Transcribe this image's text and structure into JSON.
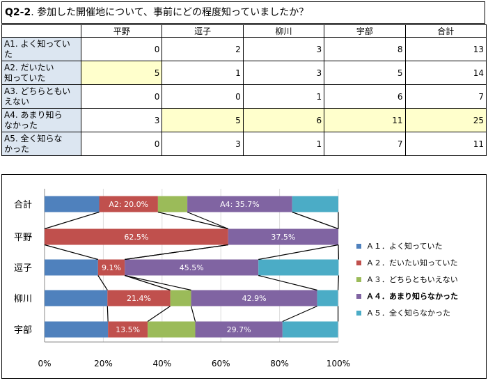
{
  "title": {
    "num": "Q2-2",
    "text": ". 参加した開催地について、事前にどの程度知っていましたか？"
  },
  "table": {
    "headers": [
      "平野",
      "逗子",
      "柳川",
      "宇部",
      "合計"
    ],
    "rows": [
      {
        "label": "A1. よく知ってい\nた",
        "values": [
          "0",
          "2",
          "3",
          "8",
          "13"
        ]
      },
      {
        "label": "A2. だいたい\n知っていた",
        "values": [
          "5",
          "1",
          "3",
          "5",
          "14"
        ]
      },
      {
        "label": "A3. どちらともい\nえない",
        "values": [
          "0",
          "0",
          "1",
          "6",
          "7"
        ]
      },
      {
        "label": "A4. あまり知ら\nなかった",
        "values": [
          "3",
          "5",
          "6",
          "11",
          "25"
        ]
      },
      {
        "label": "A5. 全く知らな\nかった",
        "values": [
          "0",
          "3",
          "1",
          "7",
          "11"
        ]
      }
    ]
  },
  "chart_data": {
    "type": "bar",
    "stacked": "percent",
    "orientation": "horizontal",
    "categories": [
      "合計",
      "平野",
      "逗子",
      "柳川",
      "宇部"
    ],
    "series": [
      {
        "name": "Ａ１．よく知っていた",
        "color": "#4f81bd",
        "values": [
          18.6,
          0,
          18.2,
          21.4,
          21.6
        ]
      },
      {
        "name": "Ａ２．だいたい知っていた",
        "color": "#c0504d",
        "values": [
          20.0,
          62.5,
          9.1,
          21.4,
          13.5
        ]
      },
      {
        "name": "Ａ３．どちらともいえない",
        "color": "#9bbb59",
        "values": [
          10.0,
          0,
          0,
          7.1,
          16.2
        ]
      },
      {
        "name": "Ａ４．あまり知らなかった",
        "color": "#8064a2",
        "values": [
          35.7,
          37.5,
          45.5,
          42.9,
          29.7
        ]
      },
      {
        "name": "Ａ５．全く知らなかった",
        "color": "#4bacc6",
        "values": [
          15.7,
          0,
          27.3,
          7.1,
          18.9
        ]
      }
    ],
    "data_labels": [
      [
        "",
        "A2: 20.0%",
        "",
        "A4: 35.7%",
        ""
      ],
      [
        "",
        "62.5%",
        "",
        "37.5%",
        ""
      ],
      [
        "",
        "9.1%",
        "",
        "45.5%",
        ""
      ],
      [
        "",
        "21.4%",
        "",
        "42.9%",
        ""
      ],
      [
        "",
        "13.5%",
        "",
        "29.7%",
        ""
      ]
    ],
    "x_ticks": [
      "0%",
      "20%",
      "40%",
      "60%",
      "80%",
      "100%"
    ],
    "xlim": [
      0,
      100
    ],
    "legend_position": "right",
    "legend_bold_index": 3,
    "series_lines": true
  }
}
